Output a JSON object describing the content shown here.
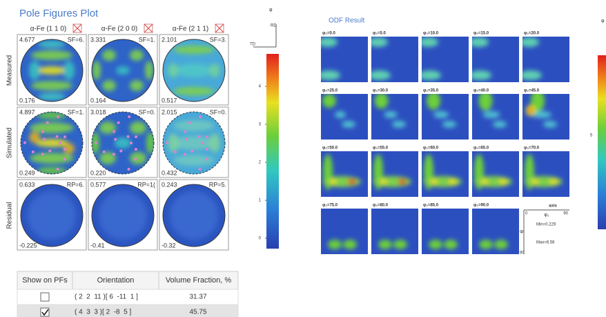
{
  "pole_figures": {
    "title": "Pole Figures Plot",
    "columns": [
      "α-Fe (1 1 0)",
      "α-Fe (2 0 0)",
      "α-Fe (2 1 1)"
    ],
    "rows": [
      {
        "label": "Measured",
        "cells": [
          {
            "max": "4.677",
            "factor": "SF=6.",
            "min": "0.176"
          },
          {
            "max": "3.331",
            "factor": "SF=1.",
            "min": "0.164"
          },
          {
            "max": "2.101",
            "factor": "SF=3.",
            "min": "0.517"
          }
        ]
      },
      {
        "label": "Simulated",
        "cells": [
          {
            "max": "4.897",
            "factor": "SF=1.",
            "min": "0.249"
          },
          {
            "max": "3.018",
            "factor": "SF=0.",
            "min": "0.220"
          },
          {
            "max": "2.015",
            "factor": "SF=0.",
            "min": "0.432"
          }
        ]
      },
      {
        "label": "Residual",
        "cells": [
          {
            "max": "0.633",
            "factor": "RP=6.",
            "min": "-0.225"
          },
          {
            "max": "0.577",
            "factor": "RP=1(",
            "min": "-0.41"
          },
          {
            "max": "0.243",
            "factor": "RP=5.",
            "min": "-0.32"
          }
        ]
      }
    ]
  },
  "colorbar": {
    "symbol": "φ",
    "rd": "RD",
    "td": "TD",
    "ticks": [
      "4",
      "3",
      "2",
      "1",
      "0"
    ]
  },
  "table": {
    "headers": [
      "Show on PFs",
      "Orientation",
      "Volume Fraction, %"
    ],
    "rows": [
      {
        "checked": false,
        "orientation": "( 2  2  11 )[ 6  -11  1 ]",
        "fraction": "31.37"
      },
      {
        "checked": true,
        "orientation": "( 4  3  3 )[ 2  -8  5 ]",
        "fraction": "45.75"
      }
    ]
  },
  "odf": {
    "title": "ODF Result",
    "sections": [
      "φ₂=0.0",
      "φ₂=5.0",
      "φ₂=10.0",
      "φ₂=15.0",
      "φ₂=20.0",
      "φ₂=25.0",
      "φ₂=30.0",
      "φ₂=35.0",
      "φ₂=40.0",
      "φ₂=45.0",
      "φ₂=50.0",
      "φ₂=55.0",
      "φ₂=60.0",
      "φ₂=65.0",
      "φ₂=70.0",
      "φ₂=75.0",
      "φ₂=80.0",
      "φ₂=85.0",
      "φ₂=90.0"
    ],
    "axis": {
      "title": "axis",
      "x_label": "φ₁",
      "x_start": "0",
      "x_end": "90",
      "y_label": "Φ",
      "y_end": "90"
    },
    "min": "Min=0.229",
    "max": "Max=6.56",
    "symbol": "φ",
    "colorbar_tick": "5"
  }
}
